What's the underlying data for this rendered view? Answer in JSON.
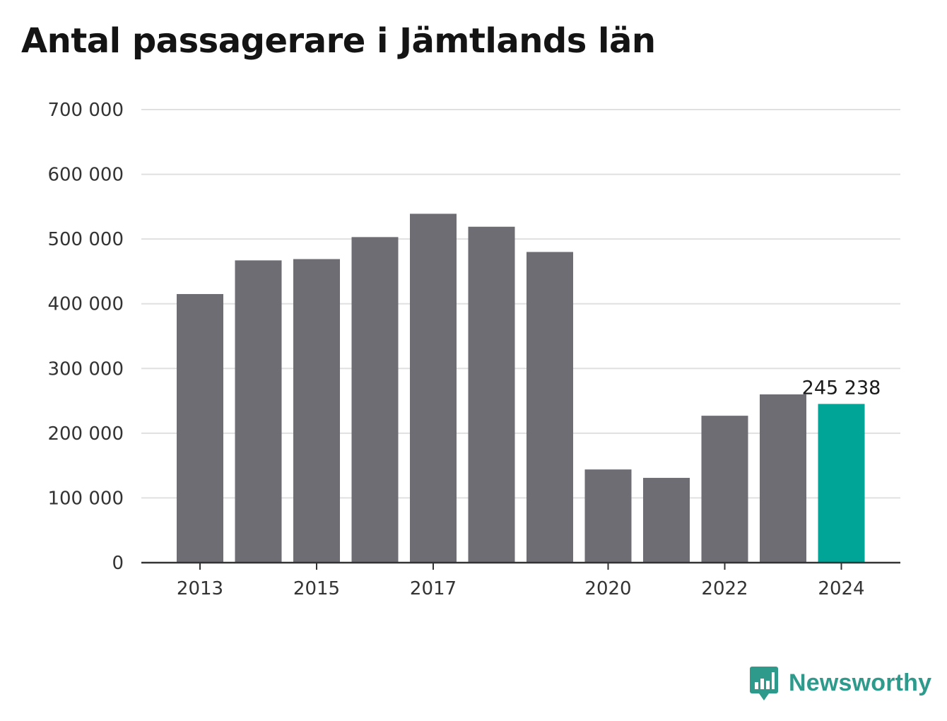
{
  "title": "Antal passagerare i Jämtlands län",
  "colors": {
    "bar": "#6e6d74",
    "highlight": "#00a598",
    "grid": "#e0e0e0",
    "axis": "#333333",
    "brand": "#2e9a8c"
  },
  "brand": {
    "name": "Newsworthy",
    "icon": "bar-chart-speech-bubble-icon"
  },
  "chart_data": {
    "type": "bar",
    "categories": [
      "2013",
      "2014",
      "2015",
      "2016",
      "2017",
      "2018",
      "2019",
      "2020",
      "2021",
      "2022",
      "2023",
      "2024"
    ],
    "values": [
      415000,
      467000,
      469000,
      503000,
      539000,
      519000,
      480000,
      144000,
      131000,
      227000,
      260000,
      245238
    ],
    "highlight_index": 11,
    "value_label": "245 238",
    "ylim": [
      0,
      700000
    ],
    "yticks": [
      0,
      100000,
      200000,
      300000,
      400000,
      500000,
      600000,
      700000
    ],
    "ytick_labels": [
      "0",
      "100 000",
      "200 000",
      "300 000",
      "400 000",
      "500 000",
      "600 000",
      "700 000"
    ],
    "xtick_labels": [
      "2013",
      "2015",
      "2017",
      "2020",
      "2022",
      "2024"
    ],
    "grid": true,
    "legend": "none"
  }
}
